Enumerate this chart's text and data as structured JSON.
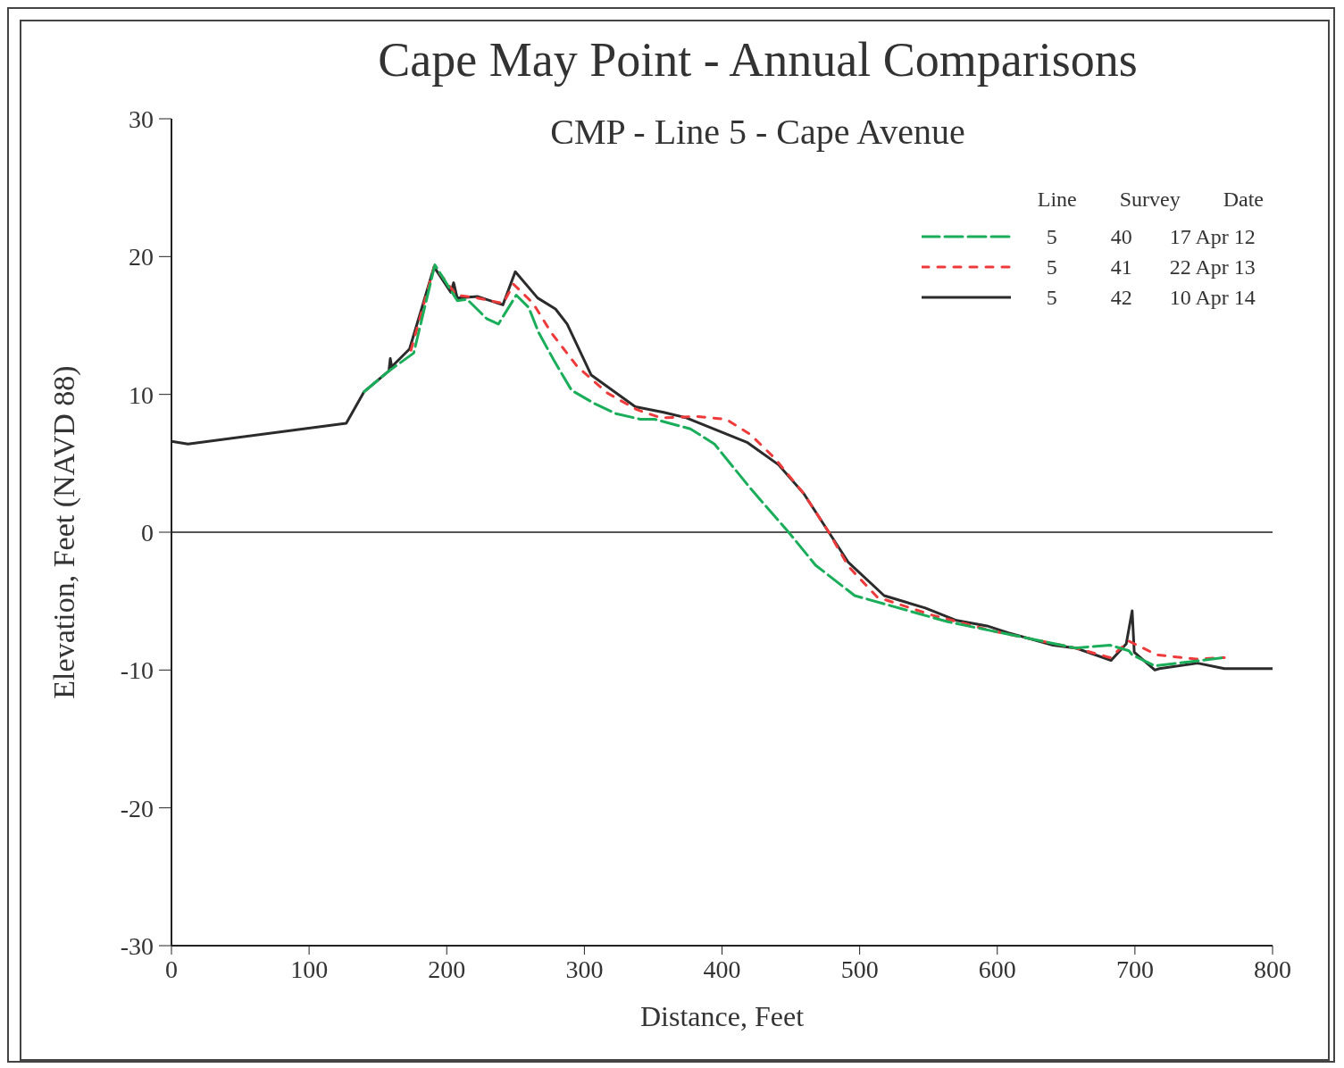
{
  "chart_data": {
    "type": "line",
    "title": "Cape May Point - Annual Comparisons",
    "subtitle": "CMP - Line 5 - Cape Avenue",
    "xlabel": "Distance, Feet",
    "ylabel": "Elevation, Feet (NAVD 88)",
    "legend_title": "Line        Survey        Date",
    "legend": "top right",
    "grid": false,
    "marker": "none",
    "xlim": [
      0,
      800
    ],
    "xticks": [
      0,
      100,
      200,
      300,
      400,
      500,
      600,
      700,
      800
    ],
    "ylim": [
      -30,
      30
    ],
    "yticks": [
      -30,
      -20,
      -10,
      0,
      10,
      20,
      30
    ],
    "ref_lines": [
      {
        "axis": "y",
        "value": 0,
        "color": "#555555"
      }
    ],
    "series": [
      {
        "name": "5          40       17 Apr 12",
        "color": "#1aad5a",
        "line_style": "dashed",
        "x": [
          140,
          158,
          176,
          191.4,
          207.7,
          214.8,
          229,
          237.5,
          250.5,
          259.6,
          266.7,
          277.7,
          290.7,
          308,
          323,
          340.7,
          351,
          377,
          394.5,
          420.5,
          448.4,
          468,
          496.4,
          564,
          598,
          656.7,
          682,
          695.6,
          698,
          714.5,
          765
        ],
        "values": [
          10.2,
          11.7,
          13.0,
          19.4,
          16.8,
          16.9,
          15.5,
          15.1,
          17.2,
          16.3,
          14.5,
          12.5,
          10.3,
          9.3,
          8.6,
          8.2,
          8.2,
          7.5,
          6.4,
          3.2,
          0,
          -2.4,
          -4.6,
          -6.5,
          -7.2,
          -8.4,
          -8.2,
          -8.6,
          -8.9,
          -9.7,
          -9.1
        ]
      },
      {
        "name": "5          41       22 Apr 13",
        "color": "#ee3a3a",
        "line_style": "dashed",
        "x": [
          174,
          191,
          207,
          222,
          241,
          248.5,
          262.8,
          275.8,
          295,
          316.7,
          338,
          355.6,
          381.6,
          403,
          420.5,
          438,
          459.4,
          477.6,
          492,
          512.7,
          552,
          598,
          656.7,
          682,
          695.6,
          716,
          744,
          765
        ],
        "values": [
          13.2,
          19.3,
          17.2,
          17.0,
          16.6,
          18.0,
          16.6,
          14.5,
          12.0,
          10.1,
          8.9,
          8.3,
          8.4,
          8.2,
          7.1,
          5.4,
          2.8,
          0,
          -2.5,
          -4.7,
          -6.0,
          -7.2,
          -8.4,
          -9.1,
          -7.9,
          -8.9,
          -9.2,
          -9.1
        ]
      },
      {
        "name": "5          42       10 Apr 14",
        "color": "#2b2b2b",
        "line_style": "solid",
        "x": [
          0,
          12,
          127,
          140,
          158,
          159,
          160,
          173,
          190.8,
          203,
          205,
          207.6,
          222.6,
          240.8,
          249.8,
          266,
          279,
          287.5,
          305,
          337,
          357.6,
          374,
          418.6,
          441,
          459.4,
          477.6,
          491.9,
          517.8,
          547.7,
          570.4,
          592.5,
          608,
          640.5,
          656.7,
          682.7,
          693.7,
          698,
          699.5,
          714.5,
          717.7,
          745.6,
          765,
          800
        ],
        "values": [
          6.6,
          6.4,
          7.9,
          10.2,
          11.7,
          12.6,
          12.0,
          13.3,
          19.25,
          17.4,
          18.1,
          17.0,
          17.1,
          16.5,
          18.9,
          17.0,
          16.2,
          15.1,
          11.4,
          9.1,
          8.7,
          8.3,
          6.5,
          4.9,
          2.8,
          0,
          -2.2,
          -4.6,
          -5.5,
          -6.4,
          -6.8,
          -7.3,
          -8.2,
          -8.4,
          -9.3,
          -8.1,
          -5.7,
          -8.7,
          -10.0,
          -9.9,
          -9.5,
          -9.9,
          -9.9
        ]
      }
    ]
  }
}
